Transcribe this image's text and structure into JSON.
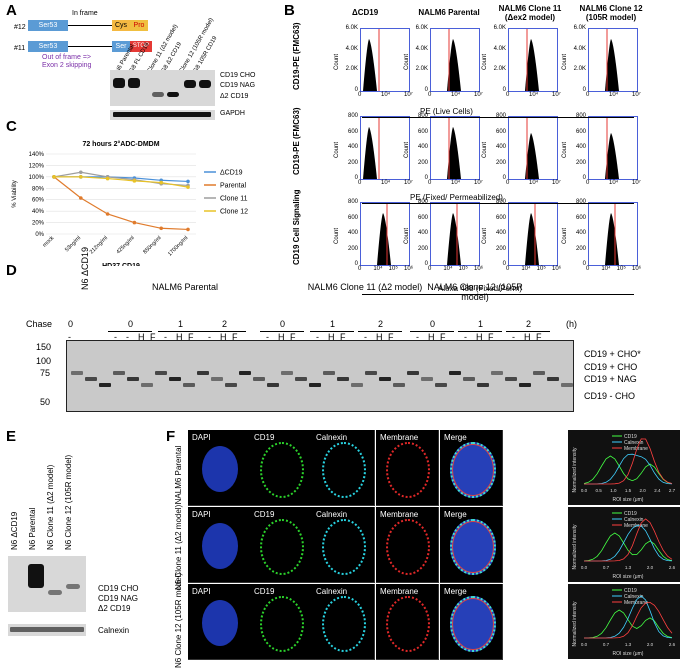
{
  "panels": {
    "A": "A",
    "B": "B",
    "C": "C",
    "D": "D",
    "E": "E",
    "F": "F"
  },
  "panelA": {
    "row1": {
      "num": "#12",
      "exon": "Ser53",
      "note": "In frame",
      "b1": "Cys",
      "b2": "Pro"
    },
    "row2": {
      "num": "#11",
      "exon": "Ser53",
      "note": "Out of frame => Exon 2 skipping",
      "b1": "Ser",
      "b2": "STOP"
    },
    "lanes": [
      "N6 Parental",
      "G8 FL CD19",
      "Clone 11 (Δ2 model)",
      "G8 Δ2 CD19",
      "Clone 12 (105R model)",
      "G8 105R CD19"
    ],
    "bands": [
      "CD19 CHO",
      "CD19 NAG",
      "Δ2 CD19"
    ],
    "loading": "GAPDH"
  },
  "panelB": {
    "columns": [
      "ΔCD19",
      "NALM6 Parental",
      "NALM6 Clone 11 (Δex2 model)",
      "NALM6 Clone 12 (105R model)"
    ],
    "rows": [
      {
        "ylabel": "CD19-PE (FMC63)",
        "xlabel": "PE (Live Cells)",
        "ymax": "6.0K",
        "ticks": [
          "6.0K",
          "4.0K",
          "2.0K",
          "0"
        ],
        "ytitle": "Count"
      },
      {
        "ylabel": "CD19-PE (FMC63)",
        "xlabel": "PE (Fixed/ Permeabilized)",
        "ymax": "800",
        "ticks": [
          "800",
          "600",
          "400",
          "200",
          "0"
        ],
        "ytitle": "Count"
      },
      {
        "ylabel": "CD19 Cell Signaling",
        "xlabel": "Alexa 488 (Fixed/Perm)",
        "ymax": "800",
        "ticks": [
          "800",
          "600",
          "400",
          "200",
          "0"
        ],
        "ytitle": "Count"
      }
    ],
    "xticks": [
      "0",
      "10⁴",
      "10⁷"
    ],
    "xticks3": [
      "0",
      "10⁴",
      "10⁵",
      "10⁶"
    ]
  },
  "panelC": {
    "chart_data": {
      "type": "line",
      "title": "72 hours 2°ADC-DMDM",
      "xlabel": "HD37 CD19",
      "ylabel": "% Viability",
      "categories": [
        "mock",
        "53ng/ml",
        "212ng/ml",
        "425ng/ml",
        "850ng/ml",
        "1700ng/ml"
      ],
      "ylim": [
        0,
        140
      ],
      "yticks": [
        "140%",
        "120%",
        "100%",
        "80%",
        "60%",
        "40%",
        "20%",
        "0%"
      ],
      "series": [
        {
          "name": "ΔCD19",
          "color": "#4a90d9",
          "values": [
            100,
            100,
            100,
            98,
            94,
            92
          ]
        },
        {
          "name": "Parental",
          "color": "#e07b2c",
          "values": [
            100,
            63,
            35,
            20,
            10,
            8
          ]
        },
        {
          "name": "Clone 11",
          "color": "#9e9e9e",
          "values": [
            100,
            108,
            100,
            95,
            88,
            85
          ]
        },
        {
          "name": "Clone 12",
          "color": "#e8c227",
          "values": [
            100,
            100,
            97,
            93,
            90,
            82
          ]
        }
      ]
    }
  },
  "panelD": {
    "chase_label": "Chase",
    "h_label": "(h)",
    "groups": [
      "N6 ΔCD19",
      "NALM6 Parental",
      "NALM6 Clone 11 (Δ2 model)",
      "NALM6 Clone 12 (105R model)"
    ],
    "times": [
      "0",
      "0",
      "1",
      "2",
      "0",
      "1",
      "2",
      "0",
      "1",
      "2"
    ],
    "lane_marks": [
      "-",
      "-",
      "H",
      "F"
    ],
    "mw": [
      "150",
      "100",
      "75",
      "50"
    ],
    "bands": [
      "CD19 + CHO*",
      "CD19 + CHO",
      "CD19 + NAG",
      "CD19 - CHO"
    ]
  },
  "panelE": {
    "lanes": [
      "N6 ΔCD19",
      "N6 Parental",
      "N6 Clone 11 (Δ2 model)",
      "N6 Clone 12 (105R model)"
    ],
    "bands": [
      "CD19 CHO",
      "CD19 NAG",
      "Δ2 CD19"
    ],
    "loading": "Calnexin"
  },
  "panelF": {
    "rows": [
      "NALM6 Parental",
      "N6 Clone 11 (Δ2 model)",
      "N6 Clone 12 (105R model)"
    ],
    "channels": [
      "DAPI",
      "CD19",
      "Calnexin",
      "Membrane",
      "Merge"
    ],
    "plot": {
      "ylabel": "Normalized intensity",
      "xlabel": "ROI size (μm)",
      "legend": [
        "CD19",
        "Calnexin",
        "Membrane"
      ]
    },
    "xticks": [
      [
        "0.0",
        "0.5",
        "1.0",
        "1.5",
        "2.0",
        "2.4",
        "2.7"
      ],
      [
        "0.0",
        "0.7",
        "1.3",
        "2.0",
        "2.6"
      ],
      [
        "0.0",
        "0.7",
        "1.3",
        "2.0",
        "2.6"
      ]
    ]
  }
}
